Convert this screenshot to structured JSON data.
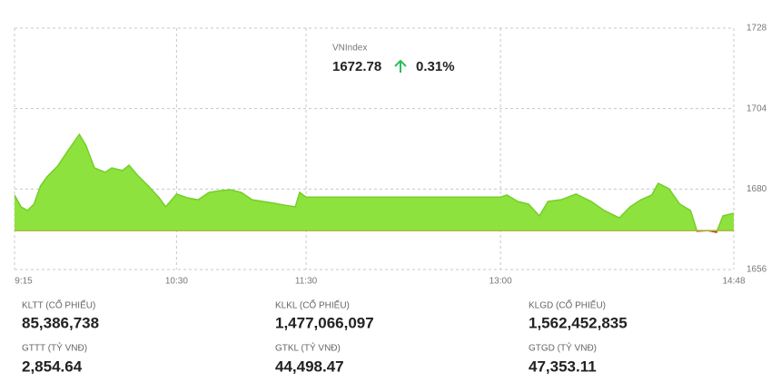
{
  "chart_data": {
    "type": "line",
    "x": [
      "9:15",
      "9:18",
      "9:21",
      "9:24",
      "9:27",
      "9:30",
      "9:35",
      "9:40",
      "9:45",
      "9:48",
      "9:52",
      "9:57",
      "10:00",
      "10:05",
      "10:08",
      "10:12",
      "10:17",
      "10:22",
      "10:25",
      "10:30",
      "10:35",
      "10:40",
      "10:45",
      "10:50",
      "10:55",
      "11:00",
      "11:05",
      "11:10",
      "11:15",
      "11:20",
      "11:25",
      "11:27",
      "11:30",
      "13:00",
      "13:03",
      "13:08",
      "13:13",
      "13:18",
      "13:22",
      "13:28",
      "13:35",
      "13:42",
      "13:48",
      "13:55",
      "14:00",
      "14:05",
      "14:10",
      "14:13",
      "14:18",
      "14:23",
      "14:28",
      "14:31",
      "14:36",
      "14:40",
      "14:43",
      "14:48"
    ],
    "series": [
      {
        "name": "VNIndex",
        "color": "#74cf27",
        "fill": "#8ee23e",
        "down_color": "#c0392b",
        "values": [
          1678.2,
          1674.7,
          1673.6,
          1675.5,
          1680.9,
          1683.6,
          1686.9,
          1691.7,
          1696.3,
          1693.1,
          1686.3,
          1685.0,
          1686.3,
          1685.5,
          1687.1,
          1684.1,
          1680.9,
          1677.4,
          1674.7,
          1678.5,
          1677.4,
          1676.8,
          1679.0,
          1679.5,
          1679.8,
          1679.0,
          1676.8,
          1676.3,
          1675.8,
          1675.2,
          1674.7,
          1679.0,
          1677.6,
          1677.6,
          1678.2,
          1676.3,
          1675.5,
          1672.0,
          1676.3,
          1676.8,
          1678.5,
          1676.3,
          1673.6,
          1671.4,
          1674.7,
          1676.8,
          1678.2,
          1681.7,
          1680.1,
          1675.5,
          1673.6,
          1667.4,
          1667.6,
          1667.1,
          1672.0,
          1672.8
        ]
      }
    ],
    "reference": 1667.61,
    "reference_color": "#a8b82e",
    "xlim": [
      "9:15",
      "14:48"
    ],
    "xticks": [
      "9:15",
      "10:30",
      "11:30",
      "13:00",
      "14:48"
    ],
    "ylim": [
      1656,
      1728
    ],
    "yticks": [
      1656,
      1680,
      1704,
      1728
    ],
    "grid": true,
    "last": 1672.78,
    "change": {
      "value": 0.31,
      "label": "0.31%"
    }
  },
  "stats": [
    {
      "label": "KLTT (CỔ PHIẾU)",
      "value": "85,386,738"
    },
    {
      "label": "KLKL (CỔ PHIẾU)",
      "value": "1,477,066,097"
    },
    {
      "label": "KLGD (CỔ PHIẾU)",
      "value": "1,562,452,835"
    },
    {
      "label": "GTTT (TỶ VNĐ)",
      "value": "2,854.64"
    },
    {
      "label": "GTKL (TỶ VNĐ)",
      "value": "44,498.47"
    },
    {
      "label": "GTGD (TỶ VNĐ)",
      "value": "47,353.11"
    }
  ]
}
